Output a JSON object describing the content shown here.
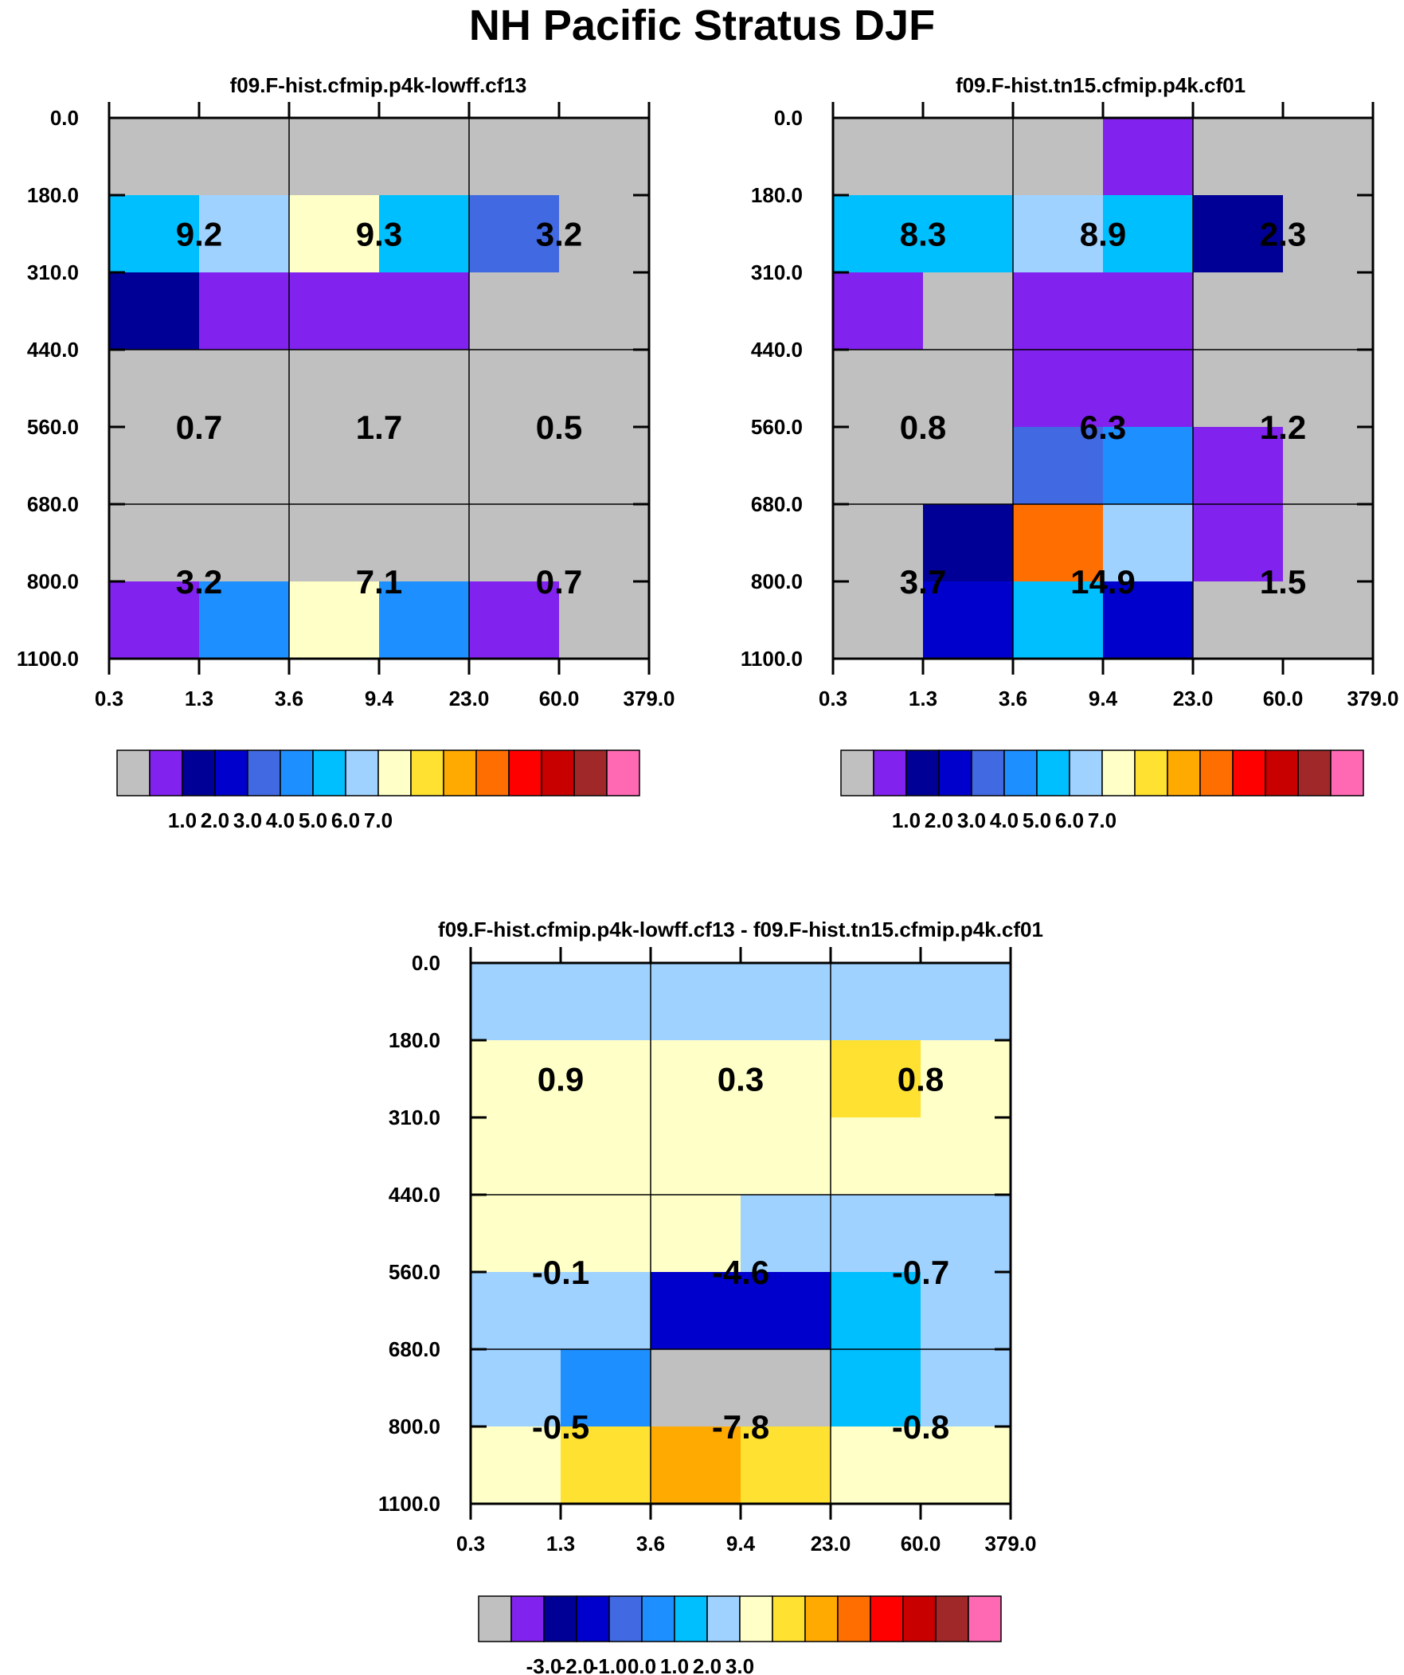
{
  "title": "NH Pacific Stratus DJF",
  "palette": [
    "#c0c0c0",
    "#8122ee",
    "#000096",
    "#0000cd",
    "#4169e1",
    "#1e8fff",
    "#00bfff",
    "#a0d2ff",
    "#ffffc8",
    "#ffe132",
    "#ffaa00",
    "#ff6e00",
    "#ff0000",
    "#c80000",
    "#a02828",
    "#ff69b4"
  ],
  "pressure_levels": [
    "0.0",
    "180.0",
    "310.0",
    "440.0",
    "560.0",
    "680.0",
    "800.0",
    "1100.0"
  ],
  "tau_levels": [
    "0.3",
    "1.3",
    "3.6",
    "9.4",
    "23.0",
    "60.0",
    "379.0"
  ],
  "chart_data": [
    {
      "type": "heatmap",
      "title": "f09.F-hist.cfmip.p4k-lowff.cf13",
      "xlabel": "",
      "ylabel": "",
      "colorbar_ticks": [
        "1.0",
        "2.0",
        "3.0",
        "4.0",
        "5.0",
        "6.0",
        "7.0"
      ],
      "cells": [
        [
          0,
          0,
          0,
          0,
          0,
          0
        ],
        [
          6,
          7,
          8,
          6,
          4,
          0
        ],
        [
          2,
          1,
          1,
          1,
          0,
          0
        ],
        [
          0,
          0,
          0,
          0,
          0,
          0
        ],
        [
          0,
          0,
          0,
          0,
          0,
          0
        ],
        [
          0,
          0,
          0,
          0,
          0,
          0
        ],
        [
          1,
          5,
          8,
          5,
          1,
          0
        ]
      ],
      "annotations": [
        [
          "9.2",
          "9.3",
          "3.2"
        ],
        [
          "0.7",
          "1.7",
          "0.5"
        ],
        [
          "3.2",
          "7.1",
          "0.7"
        ]
      ],
      "notes": "cell color = palette index; rows top-to-bottom = pressure bins 0-180 ... 800-1100; columns = tau bins 0.3-1.3 ... 60-379"
    },
    {
      "type": "heatmap",
      "title": "f09.F-hist.tn15.cfmip.p4k.cf01",
      "xlabel": "",
      "ylabel": "",
      "colorbar_ticks": [
        "1.0",
        "2.0",
        "3.0",
        "4.0",
        "5.0",
        "6.0",
        "7.0"
      ],
      "cells": [
        [
          0,
          0,
          0,
          1,
          0,
          0
        ],
        [
          6,
          6,
          7,
          6,
          2,
          0
        ],
        [
          1,
          0,
          1,
          1,
          0,
          0
        ],
        [
          0,
          0,
          1,
          1,
          0,
          0
        ],
        [
          0,
          0,
          4,
          5,
          1,
          0
        ],
        [
          0,
          2,
          11,
          7,
          1,
          0
        ],
        [
          0,
          3,
          6,
          3,
          0,
          0
        ]
      ],
      "annotations": [
        [
          "8.3",
          "8.9",
          "2.3"
        ],
        [
          "0.8",
          "6.3",
          "1.2"
        ],
        [
          "3.7",
          "14.9",
          "1.5"
        ]
      ]
    },
    {
      "type": "heatmap",
      "title": "f09.F-hist.cfmip.p4k-lowff.cf13 - f09.F-hist.tn15.cfmip.p4k.cf01",
      "xlabel": "",
      "ylabel": "",
      "colorbar_ticks": [
        "-3.0",
        "-2.0",
        "-1.0",
        "0.0",
        "1.0",
        "2.0",
        "3.0"
      ],
      "cells": [
        [
          7,
          7,
          7,
          7,
          7,
          7
        ],
        [
          8,
          8,
          8,
          8,
          9,
          8
        ],
        [
          8,
          8,
          8,
          8,
          8,
          8
        ],
        [
          8,
          8,
          8,
          7,
          7,
          7
        ],
        [
          7,
          7,
          3,
          3,
          6,
          7
        ],
        [
          7,
          5,
          0,
          0,
          6,
          7
        ],
        [
          8,
          9,
          10,
          9,
          8,
          8
        ]
      ],
      "annotations": [
        [
          "0.9",
          "0.3",
          "0.8"
        ],
        [
          "-0.1",
          "-4.6",
          "-0.7"
        ],
        [
          "-0.5",
          "-7.8",
          "-0.8"
        ]
      ]
    }
  ]
}
